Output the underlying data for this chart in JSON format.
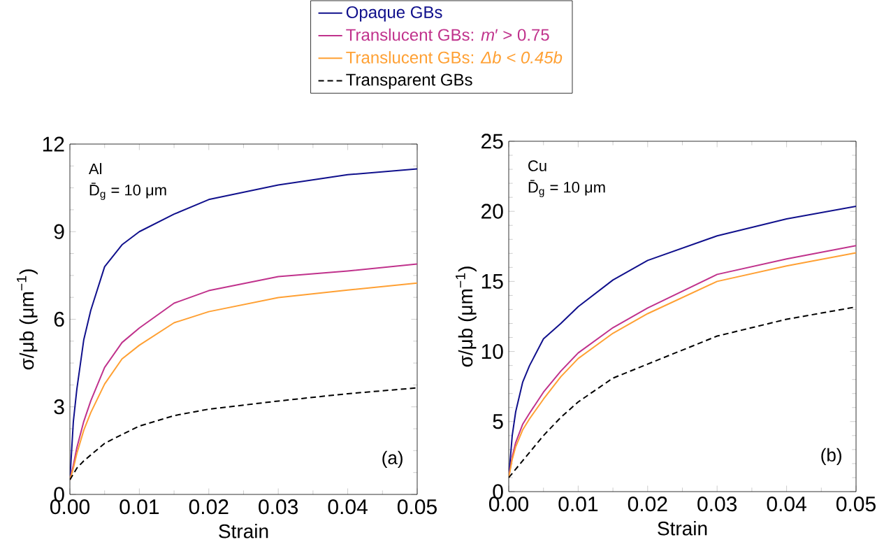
{
  "chart_data": [
    {
      "type": "line",
      "xlabel": "Strain",
      "ylabel": "σ/μb (μm$^{−1}$)",
      "legend": "top",
      "x": [
        0,
        0.0005,
        0.001,
        0.002,
        0.003,
        0.005,
        0.0075,
        0.01,
        0.015,
        0.02,
        0.03,
        0.04,
        0.05
      ],
      "xlim": [
        0,
        0.05
      ],
      "ylim": [
        0,
        12
      ],
      "xticks": [
        {
          "value": 0,
          "label": "0.00"
        },
        {
          "value": 0.01,
          "label": "0.01"
        },
        {
          "value": 0.02,
          "label": "0.02"
        },
        {
          "value": 0.03,
          "label": "0.03"
        },
        {
          "value": 0.04,
          "label": "0.04"
        },
        {
          "value": 0.05,
          "label": "0.05"
        }
      ],
      "yticks": [
        0,
        3,
        6,
        9,
        12
      ],
      "annotations": [
        "Al",
        "D̄$_{g}$ = 10 μm",
        "(a)"
      ],
      "series": [
        {
          "name": "Opaque GBs",
          "color": "#10108c",
          "line_style": "solid",
          "values": [
            0.5,
            2.5,
            3.6,
            5.3,
            6.3,
            7.8,
            8.55,
            9.0,
            9.6,
            10.1,
            10.6,
            10.95,
            11.15
          ]
        },
        {
          "name": "Translucent GBs: *m*′ > 0.75",
          "color": "#c0328c",
          "line_style": "solid",
          "values": [
            0.5,
            1.0,
            1.6,
            2.5,
            3.2,
            4.35,
            5.2,
            5.7,
            6.55,
            6.98,
            7.46,
            7.65,
            7.89
          ]
        },
        {
          "name": "Translucent GBs: *Δb < 0.45b*",
          "color": "#ffa033",
          "line_style": "solid",
          "values": [
            0.5,
            0.9,
            1.4,
            2.2,
            2.8,
            3.78,
            4.64,
            5.11,
            5.88,
            6.26,
            6.74,
            7.0,
            7.24
          ]
        },
        {
          "name": "Transparent GBs",
          "color": "#000000",
          "line_style": "dashed",
          "values": [
            0.5,
            0.7,
            0.9,
            1.15,
            1.35,
            1.75,
            2.05,
            2.34,
            2.7,
            2.92,
            3.2,
            3.45,
            3.65
          ]
        }
      ]
    },
    {
      "type": "line",
      "xlabel": "Strain",
      "ylabel": "σ/μb (μm$^{−1}$)",
      "x": [
        0,
        0.0005,
        0.001,
        0.002,
        0.003,
        0.005,
        0.0075,
        0.01,
        0.015,
        0.02,
        0.03,
        0.04,
        0.05
      ],
      "xlim": [
        0,
        0.05
      ],
      "ylim": [
        0,
        25
      ],
      "xticks": [
        {
          "value": 0,
          "label": "0.00"
        },
        {
          "value": 0.01,
          "label": "0.01"
        },
        {
          "value": 0.02,
          "label": "0.02"
        },
        {
          "value": 0.03,
          "label": "0.03"
        },
        {
          "value": 0.04,
          "label": "0.04"
        },
        {
          "value": 0.05,
          "label": "0.05"
        }
      ],
      "yticks": [
        0,
        5,
        10,
        15,
        20,
        25
      ],
      "annotations": [
        "Cu",
        "D̄$_{g}$ = 10 μm",
        "(b)"
      ],
      "series": [
        {
          "color": "#10108c",
          "line_style": "solid",
          "values": [
            1.0,
            4.0,
            5.7,
            7.8,
            9.0,
            10.9,
            12.0,
            13.2,
            15.1,
            16.5,
            18.25,
            19.46,
            20.36
          ]
        },
        {
          "color": "#c0328c",
          "line_style": "solid",
          "values": [
            1.0,
            2.5,
            3.5,
            4.8,
            5.6,
            7.1,
            8.6,
            9.9,
            11.7,
            13.1,
            15.5,
            16.6,
            17.55
          ]
        },
        {
          "color": "#ffa033",
          "line_style": "solid",
          "values": [
            1.0,
            2.3,
            3.2,
            4.4,
            5.2,
            6.6,
            8.2,
            9.5,
            11.3,
            12.7,
            15.0,
            16.1,
            17.04
          ]
        },
        {
          "color": "#000000",
          "line_style": "dashed",
          "values": [
            1.0,
            1.3,
            1.6,
            2.2,
            2.8,
            4.0,
            5.3,
            6.4,
            8.1,
            9.1,
            11.1,
            12.3,
            13.18
          ]
        }
      ]
    }
  ]
}
